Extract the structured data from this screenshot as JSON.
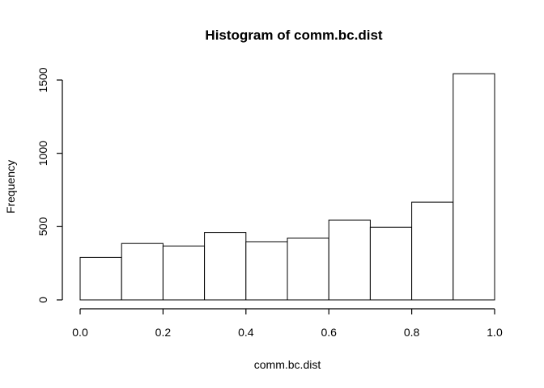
{
  "chart_data": {
    "type": "bar",
    "title": "Histogram of comm.bc.dist",
    "xlabel": "comm.bc.dist",
    "ylabel": "Frequency",
    "bins": [
      {
        "start": 0.0,
        "end": 0.1,
        "count": 290
      },
      {
        "start": 0.1,
        "end": 0.2,
        "count": 385
      },
      {
        "start": 0.2,
        "end": 0.3,
        "count": 368
      },
      {
        "start": 0.3,
        "end": 0.4,
        "count": 460
      },
      {
        "start": 0.4,
        "end": 0.5,
        "count": 397
      },
      {
        "start": 0.5,
        "end": 0.6,
        "count": 422
      },
      {
        "start": 0.6,
        "end": 0.7,
        "count": 545
      },
      {
        "start": 0.7,
        "end": 0.8,
        "count": 495
      },
      {
        "start": 0.8,
        "end": 0.9,
        "count": 667
      },
      {
        "start": 0.9,
        "end": 1.0,
        "count": 1543
      }
    ],
    "xlim": [
      0,
      1
    ],
    "ylim": [
      0,
      1550
    ],
    "x_ticks": [
      "0.0",
      "0.2",
      "0.4",
      "0.6",
      "0.8",
      "1.0"
    ],
    "y_ticks": [
      "0",
      "500",
      "1000",
      "1500"
    ],
    "grid": false,
    "legend": "none"
  }
}
